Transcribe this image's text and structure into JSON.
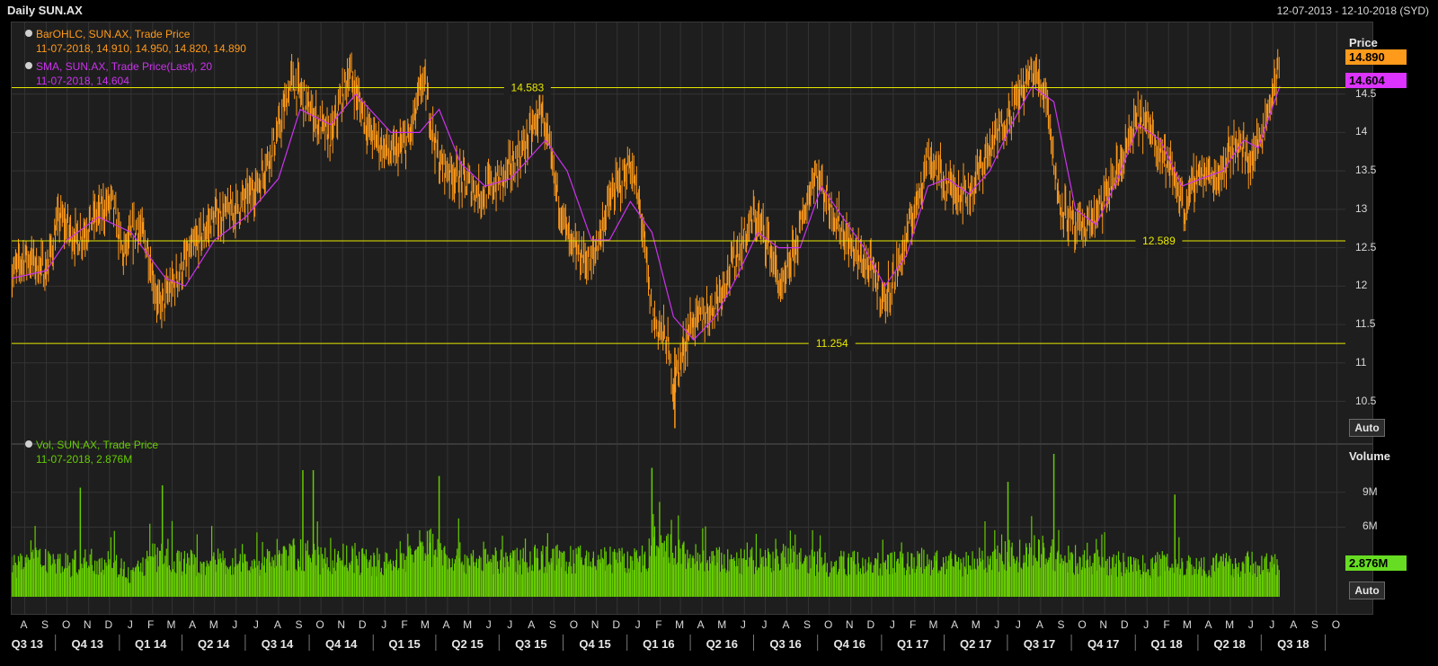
{
  "header": {
    "title": "Daily SUN.AX",
    "date_range": "12-07-2013 - 12-10-2018 (SYD)"
  },
  "legend": {
    "ohlc_name": "BarOHLC, SUN.AX, Trade Price",
    "ohlc_values": "11-07-2018, 14.910, 14.950, 14.820, 14.890",
    "sma_name": "SMA, SUN.AX, Trade Price(Last),  20",
    "sma_values": "11-07-2018, 14.604",
    "vol_name": "Vol, SUN.AX, Trade Price",
    "vol_values": "11-07-2018, 2.876M"
  },
  "price_axis": {
    "title": "Price",
    "ticks": [
      "14.5",
      "14",
      "13.5",
      "13",
      "12.5",
      "12",
      "11.5",
      "11",
      "10.5"
    ],
    "last_price_tag": "14.890",
    "sma_tag": "14.604",
    "auto_label": "Auto"
  },
  "volume_axis": {
    "title": "Volume",
    "ticks": [
      "9M",
      "6M"
    ],
    "last_volume_tag": "2.876M",
    "auto_label": "Auto"
  },
  "x_axis": {
    "months": [
      "A",
      "S",
      "O",
      "N",
      "D",
      "J",
      "F",
      "M",
      "A",
      "M",
      "J",
      "J",
      "A",
      "S",
      "O",
      "N",
      "D",
      "J",
      "F",
      "M",
      "A",
      "M",
      "J",
      "J",
      "A",
      "S",
      "O",
      "N",
      "D",
      "J",
      "F",
      "M",
      "A",
      "M",
      "J",
      "J",
      "A",
      "S",
      "O",
      "N",
      "D",
      "J",
      "F",
      "M",
      "A",
      "M",
      "J",
      "J",
      "A",
      "S",
      "O",
      "N",
      "D",
      "J",
      "F",
      "M",
      "A",
      "M",
      "J",
      "J",
      "A",
      "S",
      "O"
    ],
    "quarters": [
      "Q3 13",
      "Q4 13",
      "Q1 14",
      "Q2 14",
      "Q3 14",
      "Q4 14",
      "Q1 15",
      "Q2 15",
      "Q3 15",
      "Q4 15",
      "Q1 16",
      "Q2 16",
      "Q3 16",
      "Q4 16",
      "Q1 17",
      "Q2 17",
      "Q3 17",
      "Q4 17",
      "Q1 18",
      "Q2 18",
      "Q3 18"
    ]
  },
  "colors": {
    "background": "#1e1e1e",
    "ohlc": "#ff9a1a",
    "sma": "#cc33ee",
    "volume": "#66cc00",
    "reference_lines": "#e8e800",
    "grid": "#333333"
  },
  "chart_data": [
    {
      "type": "line",
      "title": "Daily SUN.AX",
      "ylabel": "Price",
      "ylim": [
        10.05,
        15.35
      ],
      "grid": true,
      "reference_lines": [
        {
          "value": 14.583,
          "label": "14.583"
        },
        {
          "value": 12.589,
          "label": "12.589"
        },
        {
          "value": 11.254,
          "label": "11.254"
        }
      ],
      "series": [
        {
          "name": "BarOHLC, SUN.AX, Trade Price",
          "points": [
            [
              "2013-07-12",
              12.1
            ],
            [
              "2013-08-01",
              12.4
            ],
            [
              "2013-09-01",
              12.2
            ],
            [
              "2013-09-20",
              12.9
            ],
            [
              "2013-10-15",
              12.6
            ],
            [
              "2013-11-10",
              12.9
            ],
            [
              "2013-12-05",
              13.1
            ],
            [
              "2013-12-20",
              12.4
            ],
            [
              "2014-01-10",
              12.8
            ],
            [
              "2014-01-25",
              12.5
            ],
            [
              "2014-02-10",
              11.7
            ],
            [
              "2014-03-01",
              12.0
            ],
            [
              "2014-04-01",
              12.5
            ],
            [
              "2014-05-01",
              12.9
            ],
            [
              "2014-06-01",
              13.0
            ],
            [
              "2014-07-01",
              13.3
            ],
            [
              "2014-08-01",
              14.0
            ],
            [
              "2014-08-20",
              14.7
            ],
            [
              "2014-09-15",
              14.3
            ],
            [
              "2014-10-15",
              13.9
            ],
            [
              "2014-11-10",
              14.8
            ],
            [
              "2014-12-10",
              14.0
            ],
            [
              "2015-01-10",
              13.7
            ],
            [
              "2015-02-05",
              13.9
            ],
            [
              "2015-02-25",
              14.7
            ],
            [
              "2015-03-20",
              13.6
            ],
            [
              "2015-04-20",
              13.4
            ],
            [
              "2015-05-20",
              13.2
            ],
            [
              "2015-06-20",
              13.4
            ],
            [
              "2015-07-20",
              13.8
            ],
            [
              "2015-08-15",
              14.3
            ],
            [
              "2015-09-01",
              13.4
            ],
            [
              "2015-09-25",
              12.5
            ],
            [
              "2015-10-25",
              12.3
            ],
            [
              "2015-11-20",
              13.1
            ],
            [
              "2015-12-20",
              13.6
            ],
            [
              "2016-01-05",
              12.9
            ],
            [
              "2016-01-20",
              11.6
            ],
            [
              "2016-02-10",
              11.3
            ],
            [
              "2016-02-20",
              10.7
            ],
            [
              "2016-03-15",
              11.5
            ],
            [
              "2016-04-15",
              11.7
            ],
            [
              "2016-05-15",
              12.3
            ],
            [
              "2016-06-15",
              12.9
            ],
            [
              "2016-07-05",
              12.6
            ],
            [
              "2016-07-25",
              11.9
            ],
            [
              "2016-08-25",
              12.9
            ],
            [
              "2016-09-10",
              13.5
            ],
            [
              "2016-10-05",
              13.0
            ],
            [
              "2016-11-01",
              12.5
            ],
            [
              "2016-12-01",
              12.2
            ],
            [
              "2016-12-20",
              11.8
            ],
            [
              "2017-01-10",
              12.3
            ],
            [
              "2017-02-01",
              13.0
            ],
            [
              "2017-02-20",
              13.7
            ],
            [
              "2017-03-20",
              13.3
            ],
            [
              "2017-04-20",
              13.2
            ],
            [
              "2017-05-20",
              13.8
            ],
            [
              "2017-06-20",
              14.3
            ],
            [
              "2017-07-20",
              14.8
            ],
            [
              "2017-08-10",
              14.5
            ],
            [
              "2017-08-25",
              13.2
            ],
            [
              "2017-09-20",
              12.7
            ],
            [
              "2017-10-20",
              12.9
            ],
            [
              "2017-11-20",
              13.5
            ],
            [
              "2017-12-20",
              14.2
            ],
            [
              "2018-01-10",
              14.0
            ],
            [
              "2018-02-05",
              13.5
            ],
            [
              "2018-02-25",
              13.0
            ],
            [
              "2018-03-15",
              13.5
            ],
            [
              "2018-04-10",
              13.4
            ],
            [
              "2018-05-10",
              13.9
            ],
            [
              "2018-05-30",
              13.6
            ],
            [
              "2018-06-15",
              14.0
            ],
            [
              "2018-07-11",
              14.89
            ]
          ]
        },
        {
          "name": "SMA, SUN.AX, Trade Price(Last),  20",
          "points": [
            [
              "2013-07-12",
              12.1
            ],
            [
              "2013-09-01",
              12.2
            ],
            [
              "2013-10-01",
              12.6
            ],
            [
              "2013-11-15",
              12.9
            ],
            [
              "2014-01-01",
              12.7
            ],
            [
              "2014-02-20",
              12.1
            ],
            [
              "2014-03-20",
              12.0
            ],
            [
              "2014-05-01",
              12.6
            ],
            [
              "2014-06-15",
              12.9
            ],
            [
              "2014-08-01",
              13.4
            ],
            [
              "2014-09-01",
              14.3
            ],
            [
              "2014-10-15",
              14.1
            ],
            [
              "2014-11-20",
              14.5
            ],
            [
              "2015-01-10",
              14.0
            ],
            [
              "2015-02-20",
              14.0
            ],
            [
              "2015-03-20",
              14.3
            ],
            [
              "2015-04-20",
              13.6
            ],
            [
              "2015-05-25",
              13.3
            ],
            [
              "2015-07-01",
              13.4
            ],
            [
              "2015-08-20",
              13.9
            ],
            [
              "2015-09-20",
              13.5
            ],
            [
              "2015-10-25",
              12.6
            ],
            [
              "2015-11-20",
              12.6
            ],
            [
              "2015-12-20",
              13.1
            ],
            [
              "2016-01-20",
              12.7
            ],
            [
              "2016-02-20",
              11.6
            ],
            [
              "2016-03-20",
              11.3
            ],
            [
              "2016-04-20",
              11.6
            ],
            [
              "2016-05-20",
              12.1
            ],
            [
              "2016-06-20",
              12.7
            ],
            [
              "2016-07-20",
              12.5
            ],
            [
              "2016-08-20",
              12.5
            ],
            [
              "2016-09-20",
              13.3
            ],
            [
              "2016-10-20",
              12.9
            ],
            [
              "2016-11-20",
              12.5
            ],
            [
              "2016-12-20",
              12.0
            ],
            [
              "2017-01-20",
              12.4
            ],
            [
              "2017-02-20",
              13.3
            ],
            [
              "2017-03-20",
              13.4
            ],
            [
              "2017-04-20",
              13.2
            ],
            [
              "2017-05-20",
              13.5
            ],
            [
              "2017-06-20",
              14.1
            ],
            [
              "2017-07-20",
              14.6
            ],
            [
              "2017-08-20",
              14.4
            ],
            [
              "2017-09-20",
              13.0
            ],
            [
              "2017-10-20",
              12.8
            ],
            [
              "2017-11-20",
              13.4
            ],
            [
              "2017-12-20",
              14.1
            ],
            [
              "2018-01-20",
              13.9
            ],
            [
              "2018-02-20",
              13.3
            ],
            [
              "2018-03-20",
              13.4
            ],
            [
              "2018-04-20",
              13.5
            ],
            [
              "2018-05-20",
              13.9
            ],
            [
              "2018-06-10",
              13.8
            ],
            [
              "2018-07-11",
              14.604
            ]
          ]
        }
      ]
    },
    {
      "type": "bar",
      "title": "Vol, SUN.AX, Trade Price",
      "ylabel": "Volume",
      "ylim": [
        0,
        13000000
      ],
      "series": [
        {
          "name": "Vol, SUN.AX, Trade Price",
          "points": [
            [
              "2013-08-01",
              3300000
            ],
            [
              "2013-09-01",
              3600000
            ],
            [
              "2013-10-01",
              3000000
            ],
            [
              "2013-11-01",
              3300000
            ],
            [
              "2013-12-01",
              3500000
            ],
            [
              "2014-01-01",
              2000000
            ],
            [
              "2014-02-01",
              3700000
            ],
            [
              "2014-03-01",
              3400000
            ],
            [
              "2014-04-01",
              3100000
            ],
            [
              "2014-05-01",
              3200000
            ],
            [
              "2014-06-01",
              3300000
            ],
            [
              "2014-07-01",
              3000000
            ],
            [
              "2014-08-01",
              3600000
            ],
            [
              "2014-09-01",
              4000000
            ],
            [
              "2014-10-01",
              3300000
            ],
            [
              "2014-11-01",
              3500000
            ],
            [
              "2014-12-01",
              3300000
            ],
            [
              "2015-01-01",
              3000000
            ],
            [
              "2015-02-01",
              3600000
            ],
            [
              "2015-03-01",
              5000000
            ],
            [
              "2015-04-01",
              3800000
            ],
            [
              "2015-05-01",
              3500000
            ],
            [
              "2015-06-01",
              3300000
            ],
            [
              "2015-07-01",
              3200000
            ],
            [
              "2015-08-01",
              3700000
            ],
            [
              "2015-09-01",
              3500000
            ],
            [
              "2015-10-01",
              3400000
            ],
            [
              "2015-11-01",
              3500000
            ],
            [
              "2015-12-01",
              3400000
            ],
            [
              "2016-01-01",
              3300000
            ],
            [
              "2016-02-01",
              4500000
            ],
            [
              "2016-03-01",
              4000000
            ],
            [
              "2016-04-01",
              3400000
            ],
            [
              "2016-05-01",
              3300000
            ],
            [
              "2016-06-01",
              3200000
            ],
            [
              "2016-07-01",
              3500000
            ],
            [
              "2016-08-01",
              3600000
            ],
            [
              "2016-09-01",
              3300000
            ],
            [
              "2016-10-01",
              3100000
            ],
            [
              "2016-11-01",
              3200000
            ],
            [
              "2016-12-01",
              3000000
            ],
            [
              "2017-01-01",
              3100000
            ],
            [
              "2017-02-01",
              3300000
            ],
            [
              "2017-03-01",
              3200000
            ],
            [
              "2017-04-01",
              3000000
            ],
            [
              "2017-05-01",
              3300000
            ],
            [
              "2017-06-01",
              3600000
            ],
            [
              "2017-07-01",
              3800000
            ],
            [
              "2017-08-01",
              4200000
            ],
            [
              "2017-09-01",
              3500000
            ],
            [
              "2017-10-01",
              3200000
            ],
            [
              "2017-11-01",
              3100000
            ],
            [
              "2017-12-01",
              3000000
            ],
            [
              "2018-01-01",
              2800000
            ],
            [
              "2018-02-01",
              3300000
            ],
            [
              "2018-03-01",
              3000000
            ],
            [
              "2018-04-01",
              2900000
            ],
            [
              "2018-05-01",
              3000000
            ],
            [
              "2018-06-01",
              3100000
            ],
            [
              "2018-07-11",
              2876000
            ]
          ]
        }
      ],
      "notable_spikes": [
        [
          "2013-10-20",
          9400000
        ],
        [
          "2014-02-15",
          9600000
        ],
        [
          "2014-09-05",
          10900000
        ],
        [
          "2014-09-20",
          10900000
        ],
        [
          "2015-03-20",
          10400000
        ],
        [
          "2016-01-20",
          11100000
        ],
        [
          "2017-06-15",
          9900000
        ],
        [
          "2017-08-20",
          12300000
        ],
        [
          "2018-02-10",
          8800000
        ]
      ]
    }
  ]
}
